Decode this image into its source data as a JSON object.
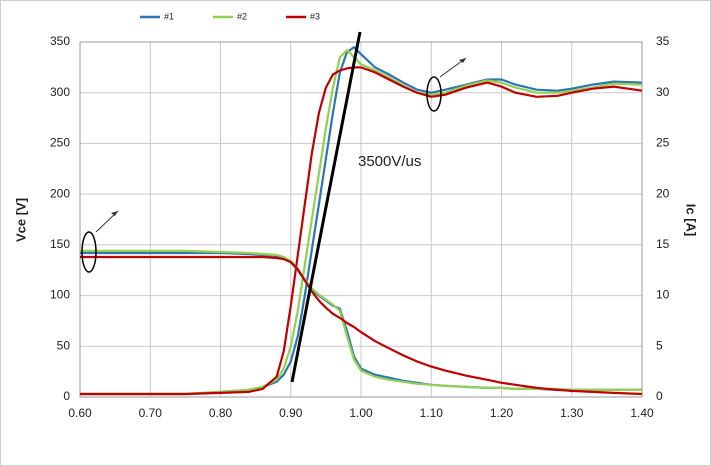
{
  "chart_data": {
    "type": "line",
    "x": [
      0.6,
      0.65,
      0.7,
      0.75,
      0.8,
      0.84,
      0.86,
      0.88,
      0.89,
      0.9,
      0.91,
      0.92,
      0.93,
      0.94,
      0.95,
      0.96,
      0.97,
      0.98,
      0.99,
      1.0,
      1.02,
      1.04,
      1.06,
      1.08,
      1.1,
      1.12,
      1.15,
      1.18,
      1.2,
      1.22,
      1.25,
      1.28,
      1.3,
      1.33,
      1.36,
      1.4
    ],
    "series": [
      {
        "name": "#1",
        "color": "#2e75b6",
        "values": [
          3,
          3,
          3,
          3,
          5,
          7,
          10,
          15,
          22,
          35,
          60,
          100,
          145,
          190,
          235,
          280,
          320,
          340,
          345,
          338,
          325,
          318,
          310,
          303,
          300,
          303,
          308,
          313,
          313,
          308,
          303,
          302,
          304,
          308,
          311,
          310
        ]
      },
      {
        "name": "#2",
        "color": "#92d050",
        "values": [
          3,
          3,
          3,
          3,
          5,
          7,
          10,
          17,
          28,
          50,
          85,
          130,
          175,
          220,
          265,
          305,
          335,
          342,
          335,
          328,
          322,
          315,
          307,
          300,
          298,
          300,
          307,
          312,
          310,
          305,
          300,
          300,
          302,
          305,
          309,
          308
        ]
      },
      {
        "name": "#3",
        "color": "#c00000",
        "values": [
          3,
          3,
          3,
          3,
          4,
          5,
          8,
          20,
          45,
          90,
          140,
          190,
          240,
          280,
          305,
          318,
          322,
          324,
          325,
          325,
          320,
          313,
          306,
          300,
          296,
          298,
          305,
          310,
          306,
          300,
          296,
          297,
          300,
          304,
          306,
          302
        ]
      },
      {
        "axis": "y2",
        "color": "#2e75b6",
        "values": [
          14.2,
          14.2,
          14.2,
          14.2,
          14.2,
          14.1,
          14.0,
          13.9,
          13.7,
          13.3,
          12.5,
          11.5,
          10.6,
          10.0,
          9.5,
          9.0,
          8.7,
          6.5,
          4.0,
          2.8,
          2.2,
          1.9,
          1.6,
          1.4,
          1.2,
          1.1,
          1.0,
          0.9,
          0.9,
          0.8,
          0.8,
          0.7,
          0.7,
          0.7,
          0.7,
          0.7
        ]
      },
      {
        "axis": "y2",
        "color": "#92d050",
        "values": [
          14.4,
          14.4,
          14.4,
          14.4,
          14.3,
          14.2,
          14.1,
          14.0,
          13.8,
          13.4,
          12.6,
          11.6,
          10.7,
          10.1,
          9.6,
          9.1,
          8.5,
          6.0,
          3.7,
          2.6,
          2.0,
          1.7,
          1.5,
          1.3,
          1.2,
          1.1,
          1.0,
          0.9,
          0.9,
          0.8,
          0.8,
          0.8,
          0.7,
          0.7,
          0.7,
          0.7
        ]
      },
      {
        "axis": "y2",
        "color": "#c00000",
        "values": [
          13.8,
          13.8,
          13.8,
          13.8,
          13.8,
          13.8,
          13.8,
          13.7,
          13.6,
          13.3,
          12.6,
          11.5,
          10.4,
          9.5,
          8.8,
          8.2,
          7.8,
          7.3,
          6.9,
          6.4,
          5.5,
          4.8,
          4.1,
          3.5,
          3.0,
          2.6,
          2.1,
          1.7,
          1.4,
          1.2,
          0.9,
          0.7,
          0.6,
          0.5,
          0.4,
          0.3
        ]
      }
    ],
    "xlim": [
      0.6,
      1.4
    ],
    "xticks": [
      {
        "value": 0.6,
        "label": "0.60"
      },
      {
        "value": 0.7,
        "label": "0.70"
      },
      {
        "value": 0.8,
        "label": "0.80"
      },
      {
        "value": 0.9,
        "label": "0.90"
      },
      {
        "value": 1.0,
        "label": "1.00"
      },
      {
        "value": 1.1,
        "label": "1.10"
      },
      {
        "value": 1.2,
        "label": "1.20"
      },
      {
        "value": 1.3,
        "label": "1.30"
      },
      {
        "value": 1.4,
        "label": "1.40"
      }
    ],
    "ylim": [
      0,
      350
    ],
    "yticks": [
      0,
      50,
      100,
      150,
      200,
      250,
      300,
      350
    ],
    "y2lim": [
      0,
      35
    ],
    "y2ticks": [
      0,
      5,
      10,
      15,
      20,
      25,
      30,
      35
    ],
    "ylabel": "Vce [V]",
    "y2label": "Ic [A]",
    "annotation": "3500V/us",
    "grid": true,
    "legend": "top"
  }
}
